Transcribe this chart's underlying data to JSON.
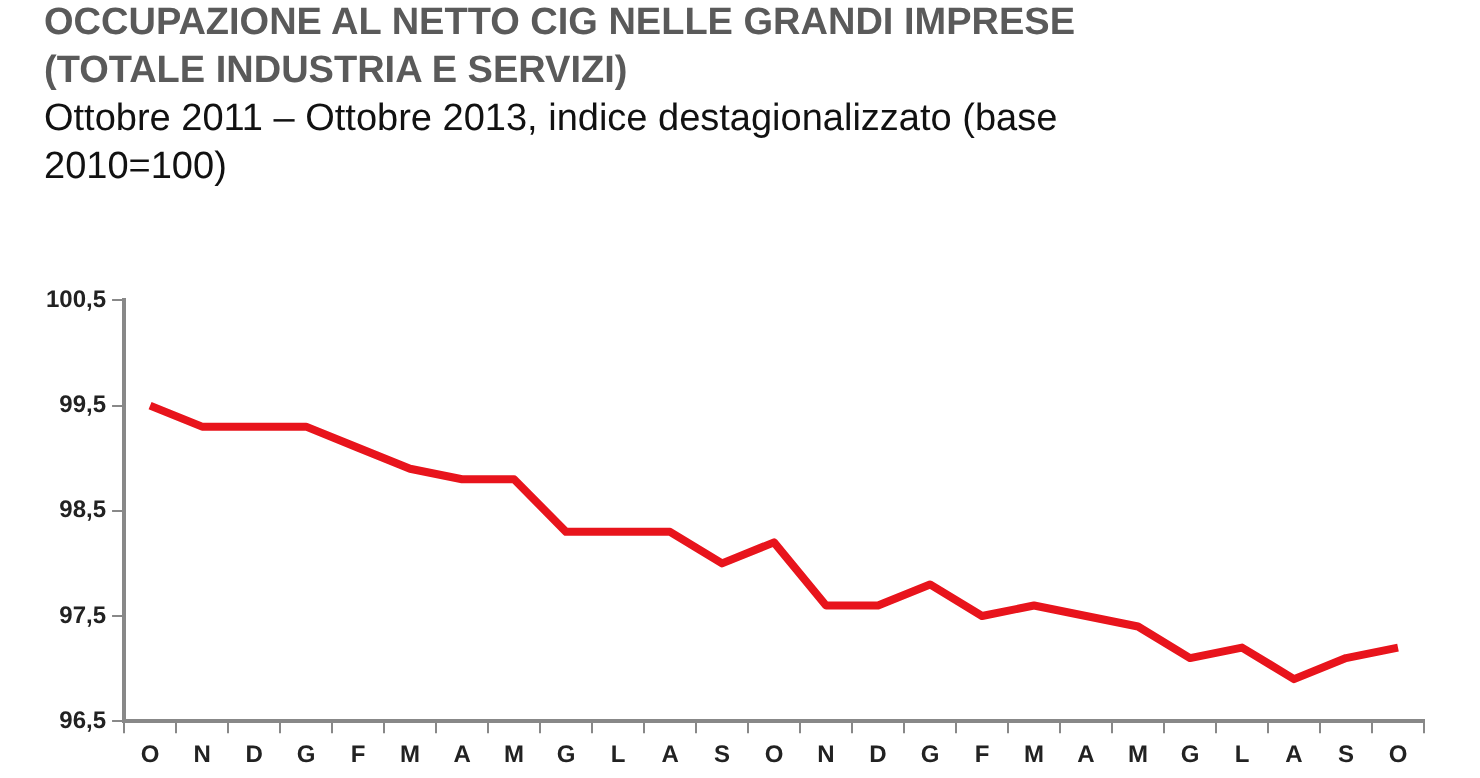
{
  "chart_data": {
    "type": "line",
    "title": "OCCUPAZIONE AL NETTO CIG NELLE GRANDI IMPRESE\n(TOTALE INDUSTRIA E SERVIZI)",
    "subtitle": "Ottobre 2011 – Ottobre 2013, indice destagionalizzato (base 2010=100)",
    "categories": [
      "O",
      "N",
      "D",
      "G",
      "F",
      "M",
      "A",
      "M",
      "G",
      "L",
      "A",
      "S",
      "O",
      "N",
      "D",
      "G",
      "F",
      "M",
      "A",
      "M",
      "G",
      "L",
      "A",
      "S",
      "O"
    ],
    "series": [
      {
        "color": "#e8141c",
        "values": [
          99.5,
          99.3,
          99.3,
          99.3,
          99.1,
          98.9,
          98.8,
          98.8,
          98.3,
          98.3,
          98.3,
          98.0,
          98.2,
          97.6,
          97.6,
          97.8,
          97.5,
          97.6,
          97.5,
          97.4,
          97.1,
          97.2,
          96.9,
          97.1,
          97.2
        ]
      }
    ],
    "ylim": [
      96.5,
      100.5
    ],
    "yticks": [
      {
        "value": 96.5,
        "label": "96,5"
      },
      {
        "value": 97.5,
        "label": "97,5"
      },
      {
        "value": 98.5,
        "label": "98,5"
      },
      {
        "value": 99.5,
        "label": "99,5"
      },
      {
        "value": 100.5,
        "label": "100,5"
      }
    ],
    "grid": false,
    "legend": false,
    "marker": "none",
    "line_style": "solid"
  }
}
